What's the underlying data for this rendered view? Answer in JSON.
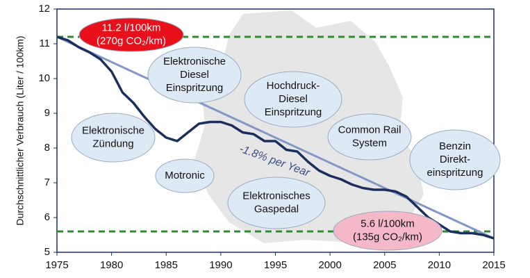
{
  "chart_data": {
    "type": "line",
    "y_label": "Durchschnittlicher Verbrauch (Liter / 100km)",
    "x": [
      1975,
      1976,
      1977,
      1978,
      1979,
      1980,
      1981,
      1982,
      1983,
      1984,
      1985,
      1986,
      1987,
      1988,
      1989,
      1990,
      1991,
      1992,
      1993,
      1994,
      1995,
      1996,
      1997,
      1998,
      1999,
      2000,
      2001,
      2002,
      2003,
      2004,
      2005,
      2006,
      2007,
      2008,
      2009,
      2010,
      2011,
      2012,
      2013,
      2014,
      2015
    ],
    "series": [
      {
        "color": "#1b2f5e",
        "values": [
          11.2,
          11.1,
          10.9,
          10.75,
          10.55,
          10.2,
          9.6,
          9.3,
          8.9,
          8.55,
          8.3,
          8.2,
          8.45,
          8.7,
          8.75,
          8.75,
          8.65,
          8.45,
          8.4,
          8.2,
          8.2,
          7.95,
          7.9,
          7.6,
          7.35,
          7.2,
          7.1,
          6.95,
          6.85,
          6.8,
          6.8,
          6.75,
          6.6,
          6.3,
          6.0,
          5.8,
          5.6,
          5.55,
          5.55,
          5.5,
          5.4
        ]
      },
      {
        "color": "#8197c6",
        "x": [
          1975,
          2015
        ],
        "values": [
          11.2,
          5.4
        ]
      }
    ],
    "trend_label": "-1.8% per Year",
    "reference_lines": [
      {
        "value": 11.2,
        "color": "#2e8b2e"
      },
      {
        "value": 5.6,
        "color": "#2e8b2e"
      }
    ],
    "annotations": [
      {
        "lines": [
          "11.2 l/100km",
          "(270g CO₂/km)"
        ],
        "fill": "#e8101a",
        "text_color": "#ffffff"
      },
      {
        "lines": [
          "Elektronische",
          "Diesel",
          "Einspritzung"
        ],
        "fill": "#dde9f5",
        "text_color": "#111111"
      },
      {
        "lines": [
          "Hochdruck-",
          "Diesel",
          "Einspritzung"
        ],
        "fill": "#dde9f5",
        "text_color": "#111111"
      },
      {
        "lines": [
          "Elektronische",
          "Zündung"
        ],
        "fill": "#dde9f5",
        "text_color": "#111111"
      },
      {
        "lines": [
          "Common Rail",
          "System"
        ],
        "fill": "#dde9f5",
        "text_color": "#111111"
      },
      {
        "lines": [
          "Benzin",
          "Direkt-",
          "einspritzung"
        ],
        "fill": "#dde9f5",
        "text_color": "#111111"
      },
      {
        "lines": [
          "Motronic"
        ],
        "fill": "#dde9f5",
        "text_color": "#111111"
      },
      {
        "lines": [
          "Elektronisches",
          "Gaspedal"
        ],
        "fill": "#dde9f5",
        "text_color": "#111111"
      },
      {
        "lines": [
          "5.6 l/100km",
          "(135g CO₂/km)"
        ],
        "fill": "#f4b8c8",
        "text_color": "#111111"
      }
    ],
    "xlim": [
      1975,
      2015
    ],
    "xticks": [
      1975,
      1980,
      1985,
      1990,
      1995,
      2000,
      2005,
      2010,
      2015
    ],
    "ylim": [
      5,
      12
    ],
    "yticks": [
      5,
      6,
      7,
      8,
      9,
      10,
      11,
      12
    ]
  }
}
